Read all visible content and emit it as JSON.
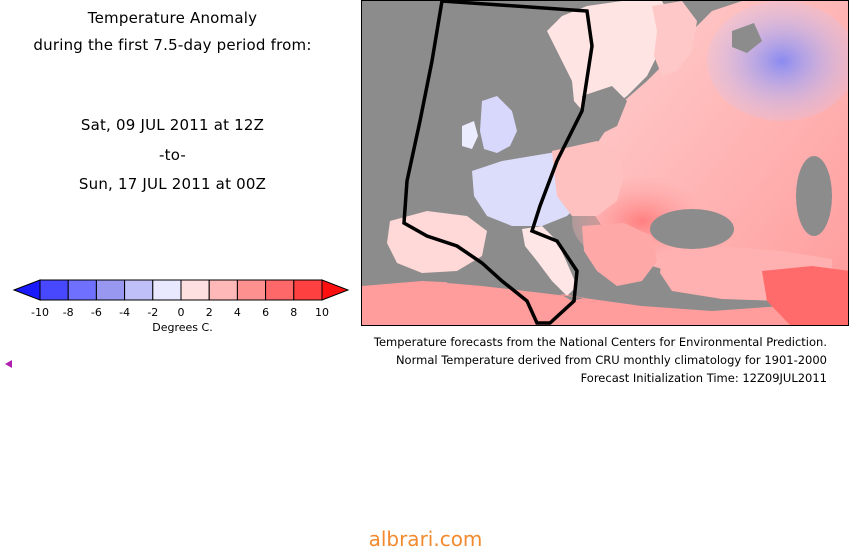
{
  "header": {
    "title": "Temperature Anomaly",
    "subtitle": "during the first 7.5-day period from:",
    "start": "Sat, 09 JUL 2011 at 12Z",
    "separator": "-to-",
    "end": "Sun, 17 JUL 2011 at 00Z"
  },
  "legend": {
    "unit_label": "Degrees C.",
    "tick_labels": [
      "-10",
      "-8",
      "-6",
      "-4",
      "-2",
      "0",
      "2",
      "4",
      "6",
      "8",
      "10"
    ],
    "colors": [
      "#1a1aff",
      "#4848ff",
      "#7070ff",
      "#9898f0",
      "#c0c0f8",
      "#e8e8ff",
      "#ffe0e0",
      "#ffb8b8",
      "#ff9090",
      "#ff6868",
      "#ff4040",
      "#ff1010"
    ]
  },
  "credits": {
    "line1": "Temperature forecasts from the National Centers for Environmental Prediction.",
    "line2": "Normal Temperature derived from CRU monthly climatology for 1901-2000",
    "line3": "Forecast Initialization Time: 12Z09JUL2011"
  },
  "map": {
    "region": "Europe",
    "ocean_color": "#8c8c8c",
    "outline_color": "#000000"
  },
  "watermark": "albrari.com",
  "marker_icon": "triangle-left-icon"
}
